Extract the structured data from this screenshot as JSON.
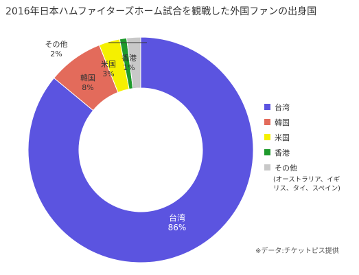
{
  "chart_data": {
    "type": "pie",
    "title": "2016年日本ハムファイターズホーム試合を観戦した外国ファンの出身国",
    "categories": [
      "台湾",
      "韓国",
      "米国",
      "香港",
      "その他"
    ],
    "values": [
      86,
      8,
      3,
      1,
      2
    ],
    "value_unit": "%",
    "data_labels": [
      "86%",
      "8%",
      "3%",
      "1%",
      "2%"
    ],
    "colors": [
      "#5b54e0",
      "#e36b5b",
      "#f5f000",
      "#1e9a2c",
      "#c8c8c8"
    ],
    "donut": true,
    "legend": {
      "position": "right",
      "entries": [
        "台湾",
        "韓国",
        "米国",
        "香港",
        "その他"
      ],
      "other_note_line1": "(オーストラリア、イギ",
      "other_note_line2": "リス、タイ、スペイン)"
    },
    "source_note": "※データ:チケットピス提供"
  }
}
